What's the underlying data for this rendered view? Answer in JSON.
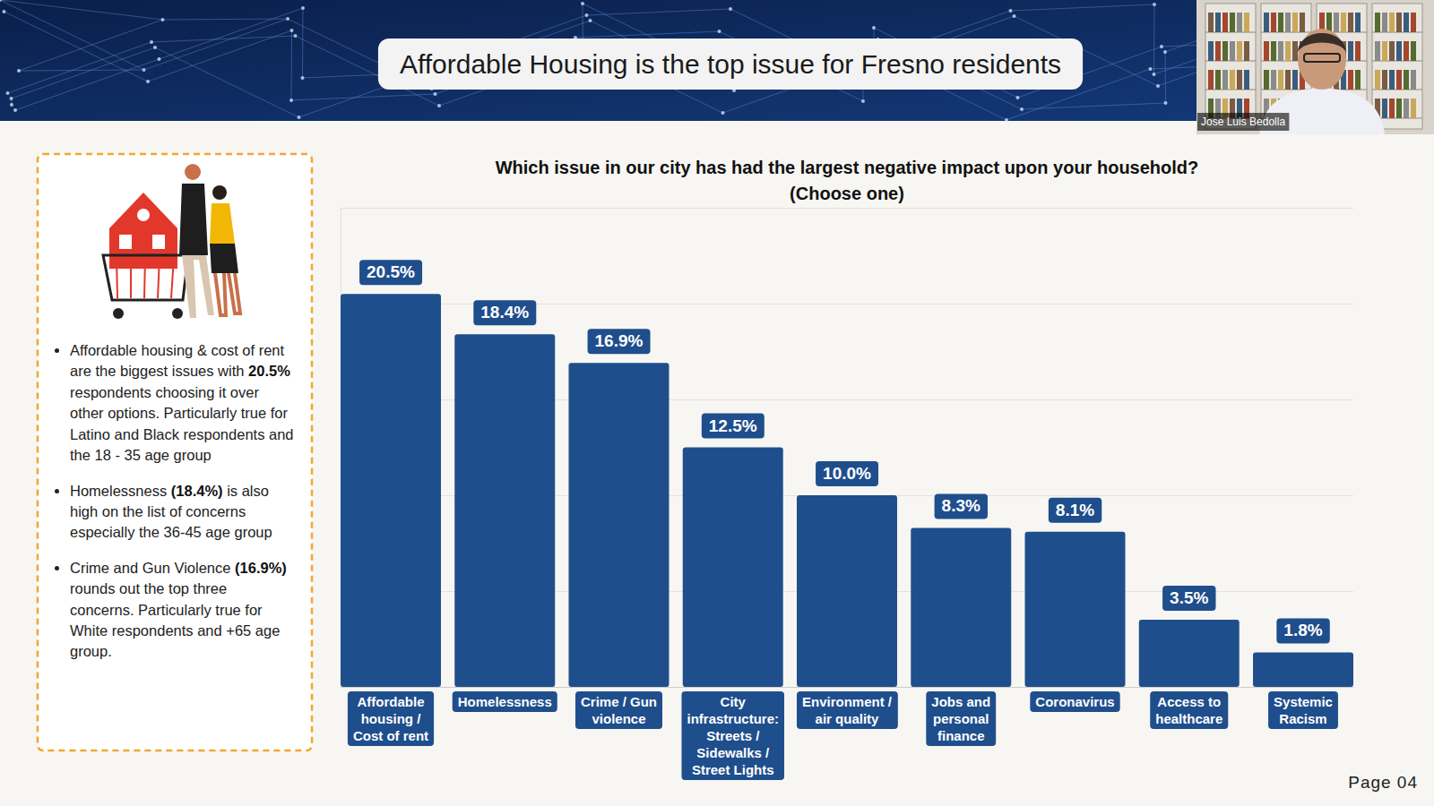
{
  "slide": {
    "heading": "Affordable Housing is the top issue for Fresno residents",
    "speaker": "Jose Luis Bedolla",
    "page": "Page 04",
    "notes": [
      [
        "Affordable housing & cost of rent are the biggest issues with ",
        "20.5%",
        " respondents choosing it over other options. Particularly true for Latino and Black respondents and the 18 - 35 age group"
      ],
      [
        "Homelessness ",
        "(18.4%)",
        " is also high on the list of concerns especially the 36-45 age group"
      ],
      [
        "Crime and Gun Violence ",
        "(16.9%)",
        " rounds out the top three concerns. Particularly true for White respondents and +65  age group."
      ]
    ]
  },
  "chart_data": {
    "type": "bar",
    "title": "Which issue in our city has had the largest negative impact upon your household?",
    "subtitle": "(Choose one)",
    "categories": [
      "Affordable housing / Cost of rent",
      "Homelessness",
      "Crime / Gun violence",
      "City infrastructure: Streets / Sidewalks / Street Lights",
      "Environment / air quality",
      "Jobs and personal finance",
      "Coronavirus",
      "Access to healthcare",
      "Systemic Racism"
    ],
    "values": [
      20.5,
      18.4,
      16.9,
      12.5,
      10.0,
      8.3,
      8.1,
      3.5,
      1.8
    ],
    "value_labels": [
      "20.5%",
      "18.4%",
      "16.9%",
      "12.5%",
      "10.0%",
      "8.3%",
      "8.1%",
      "3.5%",
      "1.8%"
    ],
    "color": "#1f4e8c",
    "ylim": [
      0,
      25
    ],
    "yticks": [
      0,
      5,
      10,
      15,
      20,
      25
    ],
    "grid": true,
    "data_labels": true,
    "tick_labels": "x"
  }
}
